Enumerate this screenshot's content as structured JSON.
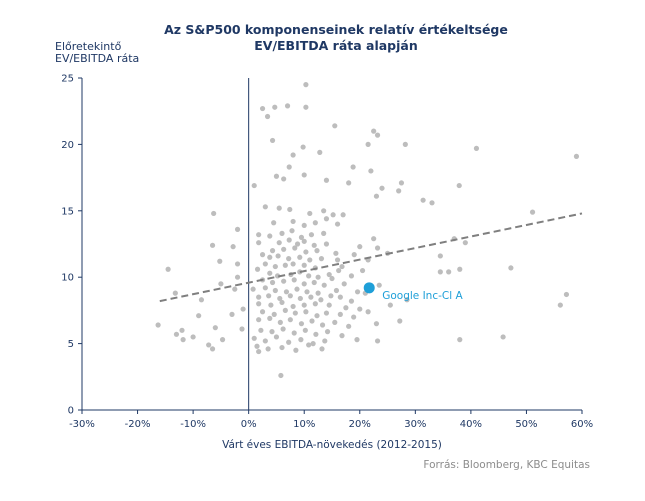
{
  "chart_data": {
    "type": "scatter",
    "title": "Az S&P500 komponenseinek  relatív értékeltsége",
    "subtitle": "EV/EBITDA ráta alapján",
    "ylabel_line1": "Előretekintő",
    "ylabel_line2": "EV/EBITDA ráta",
    "xlabel": "Várt éves EBITDA-növekedés (2012-2015)",
    "source": "Forrás: Bloomberg, KBC Equitas",
    "xlim": [
      -0.3,
      0.6
    ],
    "ylim": [
      0,
      25
    ],
    "xticks": [
      -0.3,
      -0.2,
      -0.1,
      0,
      0.1,
      0.2,
      0.3,
      0.4,
      0.5,
      0.6
    ],
    "xtick_labels": [
      "-30%",
      "-20%",
      "-10%",
      "0%",
      "10%",
      "20%",
      "30%",
      "40%",
      "50%",
      "60%"
    ],
    "yticks": [
      0,
      5,
      10,
      15,
      20,
      25
    ],
    "ytick_labels": [
      "0",
      "5",
      "10",
      "15",
      "20",
      "25"
    ],
    "grid": false,
    "colors": {
      "points": "#bdbdbd",
      "trend": "#7f7f7f",
      "highlight": "#1e9fd8",
      "axis": "#1f3864",
      "zero_line": "#1f3864"
    },
    "trendline": {
      "x": [
        -0.16,
        0.6
      ],
      "y": [
        8.2,
        14.8
      ]
    },
    "highlight": {
      "label": "Google Inc-Cl A",
      "x": 0.217,
      "y": 9.2
    },
    "points": [
      [
        0.103,
        24.5
      ],
      [
        0.047,
        22.8
      ],
      [
        0.025,
        22.7
      ],
      [
        0.07,
        22.9
      ],
      [
        0.103,
        22.8
      ],
      [
        0.034,
        22.1
      ],
      [
        0.155,
        21.4
      ],
      [
        0.225,
        21.0
      ],
      [
        0.232,
        20.7
      ],
      [
        0.215,
        20.0
      ],
      [
        0.282,
        20.0
      ],
      [
        0.41,
        19.7
      ],
      [
        0.59,
        19.1
      ],
      [
        0.043,
        20.3
      ],
      [
        0.08,
        19.2
      ],
      [
        0.098,
        19.8
      ],
      [
        0.128,
        19.4
      ],
      [
        0.188,
        18.3
      ],
      [
        0.073,
        18.3
      ],
      [
        0.22,
        18.0
      ],
      [
        0.01,
        16.9
      ],
      [
        0.05,
        17.6
      ],
      [
        0.063,
        17.4
      ],
      [
        0.1,
        17.7
      ],
      [
        0.18,
        17.1
      ],
      [
        0.14,
        17.3
      ],
      [
        0.275,
        17.1
      ],
      [
        0.27,
        16.5
      ],
      [
        0.24,
        16.7
      ],
      [
        0.23,
        16.1
      ],
      [
        0.379,
        16.9
      ],
      [
        0.314,
        15.8
      ],
      [
        0.33,
        15.6
      ],
      [
        0.511,
        14.9
      ],
      [
        -0.063,
        14.8
      ],
      [
        0.03,
        15.3
      ],
      [
        0.055,
        15.2
      ],
      [
        0.074,
        15.1
      ],
      [
        0.11,
        14.8
      ],
      [
        0.135,
        15.0
      ],
      [
        0.152,
        14.7
      ],
      [
        0.17,
        14.7
      ],
      [
        0.14,
        14.4
      ],
      [
        0.045,
        14.1
      ],
      [
        0.08,
        14.2
      ],
      [
        0.1,
        13.9
      ],
      [
        0.12,
        14.1
      ],
      [
        0.16,
        14.0
      ],
      [
        -0.02,
        13.6
      ],
      [
        0.018,
        13.2
      ],
      [
        0.038,
        13.1
      ],
      [
        0.06,
        13.3
      ],
      [
        0.078,
        13.5
      ],
      [
        0.095,
        13.0
      ],
      [
        0.113,
        13.2
      ],
      [
        0.135,
        13.3
      ],
      [
        0.225,
        12.9
      ],
      [
        0.37,
        12.9
      ],
      [
        0.018,
        12.6
      ],
      [
        0.055,
        12.6
      ],
      [
        0.073,
        12.8
      ],
      [
        0.088,
        12.5
      ],
      [
        0.1,
        12.7
      ],
      [
        0.118,
        12.4
      ],
      [
        0.14,
        12.5
      ],
      [
        0.2,
        12.3
      ],
      [
        0.232,
        12.2
      ],
      [
        -0.065,
        12.4
      ],
      [
        -0.028,
        12.3
      ],
      [
        0.39,
        12.6
      ],
      [
        0.043,
        12.0
      ],
      [
        0.063,
        12.1
      ],
      [
        0.083,
        12.2
      ],
      [
        0.103,
        11.9
      ],
      [
        0.123,
        12.0
      ],
      [
        0.157,
        11.8
      ],
      [
        0.19,
        11.7
      ],
      [
        0.25,
        11.8
      ],
      [
        0.345,
        11.6
      ],
      [
        0.025,
        11.7
      ],
      [
        0.038,
        11.5
      ],
      [
        0.053,
        11.6
      ],
      [
        0.072,
        11.4
      ],
      [
        0.092,
        11.5
      ],
      [
        0.11,
        11.3
      ],
      [
        0.131,
        11.4
      ],
      [
        0.16,
        11.3
      ],
      [
        0.08,
        11.0
      ],
      [
        0.215,
        11.3
      ],
      [
        -0.052,
        11.2
      ],
      [
        -0.02,
        11.0
      ],
      [
        0.03,
        11.0
      ],
      [
        0.048,
        10.8
      ],
      [
        0.066,
        10.9
      ],
      [
        0.1,
        10.9
      ],
      [
        0.12,
        10.7
      ],
      [
        0.168,
        10.8
      ],
      [
        0.205,
        10.5
      ],
      [
        -0.145,
        10.6
      ],
      [
        0.016,
        10.6
      ],
      [
        0.038,
        10.3
      ],
      [
        0.052,
        10.1
      ],
      [
        0.076,
        10.2
      ],
      [
        0.092,
        10.4
      ],
      [
        0.108,
        10.1
      ],
      [
        0.125,
        10.0
      ],
      [
        0.145,
        10.2
      ],
      [
        0.162,
        10.5
      ],
      [
        0.185,
        10.1
      ],
      [
        0.345,
        10.4
      ],
      [
        0.36,
        10.4
      ],
      [
        0.38,
        10.6
      ],
      [
        0.472,
        10.7
      ],
      [
        -0.02,
        10.0
      ],
      [
        0.025,
        9.8
      ],
      [
        0.043,
        9.6
      ],
      [
        0.063,
        9.7
      ],
      [
        0.082,
        9.8
      ],
      [
        0.1,
        9.5
      ],
      [
        0.118,
        9.6
      ],
      [
        0.136,
        9.4
      ],
      [
        0.15,
        9.9
      ],
      [
        0.172,
        9.5
      ],
      [
        -0.05,
        9.5
      ],
      [
        0.235,
        9.4
      ],
      [
        -0.025,
        9.1
      ],
      [
        0.008,
        9.1
      ],
      [
        0.03,
        9.2
      ],
      [
        0.048,
        9.0
      ],
      [
        0.068,
        8.9
      ],
      [
        0.087,
        9.1
      ],
      [
        0.105,
        8.9
      ],
      [
        0.125,
        8.8
      ],
      [
        0.158,
        9.0
      ],
      [
        0.196,
        8.9
      ],
      [
        0.018,
        8.5
      ],
      [
        0.036,
        8.6
      ],
      [
        0.056,
        8.4
      ],
      [
        0.075,
        8.6
      ],
      [
        0.093,
        8.4
      ],
      [
        0.112,
        8.5
      ],
      [
        0.13,
        8.3
      ],
      [
        0.148,
        8.6
      ],
      [
        0.165,
        8.5
      ],
      [
        0.185,
        8.2
      ],
      [
        0.21,
        8.8
      ],
      [
        -0.132,
        8.8
      ],
      [
        -0.085,
        8.3
      ],
      [
        0.018,
        8.0
      ],
      [
        0.04,
        7.9
      ],
      [
        0.06,
        8.1
      ],
      [
        0.08,
        7.8
      ],
      [
        0.1,
        7.9
      ],
      [
        0.12,
        8.0
      ],
      [
        0.145,
        7.9
      ],
      [
        0.175,
        7.7
      ],
      [
        0.2,
        7.6
      ],
      [
        0.255,
        7.9
      ],
      [
        0.285,
        8.3
      ],
      [
        0.561,
        7.9
      ],
      [
        0.572,
        8.7
      ],
      [
        -0.01,
        7.6
      ],
      [
        0.025,
        7.4
      ],
      [
        0.046,
        7.2
      ],
      [
        0.066,
        7.5
      ],
      [
        0.084,
        7.3
      ],
      [
        0.103,
        7.4
      ],
      [
        0.123,
        7.1
      ],
      [
        0.14,
        7.3
      ],
      [
        0.165,
        7.2
      ],
      [
        0.189,
        7.0
      ],
      [
        0.215,
        7.4
      ],
      [
        -0.09,
        7.1
      ],
      [
        -0.03,
        7.2
      ],
      [
        0.018,
        6.8
      ],
      [
        0.038,
        6.9
      ],
      [
        0.057,
        6.6
      ],
      [
        0.075,
        6.8
      ],
      [
        0.095,
        6.5
      ],
      [
        0.114,
        6.7
      ],
      [
        0.133,
        6.4
      ],
      [
        0.155,
        6.6
      ],
      [
        0.18,
        6.3
      ],
      [
        0.23,
        6.5
      ],
      [
        0.272,
        6.7
      ],
      [
        -0.163,
        6.4
      ],
      [
        -0.12,
        6.0
      ],
      [
        -0.06,
        6.2
      ],
      [
        -0.012,
        6.1
      ],
      [
        0.022,
        6.0
      ],
      [
        0.042,
        5.9
      ],
      [
        0.062,
        6.1
      ],
      [
        0.082,
        5.8
      ],
      [
        0.102,
        6.0
      ],
      [
        0.121,
        5.7
      ],
      [
        0.142,
        5.9
      ],
      [
        0.168,
        5.6
      ],
      [
        -0.13,
        5.7
      ],
      [
        -0.118,
        5.3
      ],
      [
        -0.1,
        5.5
      ],
      [
        -0.047,
        5.3
      ],
      [
        0.01,
        5.4
      ],
      [
        0.03,
        5.2
      ],
      [
        0.05,
        5.5
      ],
      [
        0.072,
        5.1
      ],
      [
        0.094,
        5.3
      ],
      [
        0.116,
        5.0
      ],
      [
        0.137,
        5.2
      ],
      [
        0.195,
        5.3
      ],
      [
        0.232,
        5.2
      ],
      [
        0.38,
        5.3
      ],
      [
        0.458,
        5.5
      ],
      [
        -0.072,
        4.9
      ],
      [
        -0.065,
        4.6
      ],
      [
        0.015,
        4.8
      ],
      [
        0.035,
        4.6
      ],
      [
        0.06,
        4.7
      ],
      [
        0.085,
        4.5
      ],
      [
        0.108,
        4.9
      ],
      [
        0.132,
        4.6
      ],
      [
        0.018,
        4.4
      ],
      [
        0.058,
        2.6
      ]
    ]
  }
}
